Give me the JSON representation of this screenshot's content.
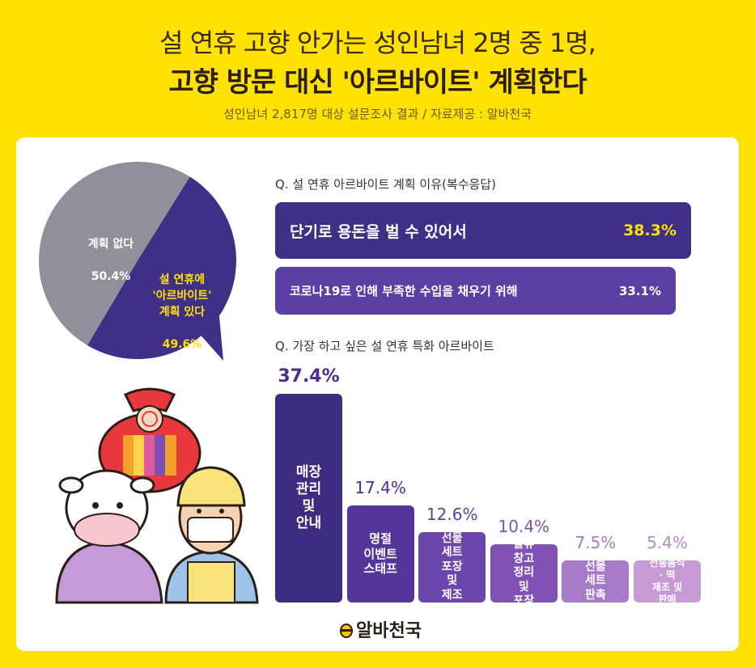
{
  "header": {
    "title_line1": "설 연휴 고향 안가는 성인남녀 2명 중 1명,",
    "title_line2": "고향 방문 대신 '아르바이트' 계획한다",
    "subtitle": "성인남녀 2,817명 대상 설문조사 결과 / 자료제공 : 알바천국"
  },
  "colors": {
    "background": "#FFE200",
    "purple_dark": "#3F2F86",
    "purple_mid": "#5B3FA2",
    "gray_slice": "#8F909A",
    "value_yellow": "#FFE200"
  },
  "pie": {
    "no_plan_label": "계획 없다",
    "no_plan_value": "50.4%",
    "plan_label": "설 연휴에\n'아르바이트'\n계획 있다",
    "plan_value": "49.6%"
  },
  "reasons": {
    "question": "Q. 설 연휴 아르바이트 계획 이유(복수응답)",
    "items": [
      {
        "label": "단기로 용돈을 벌 수 있어서",
        "value": "38.3%"
      },
      {
        "label": "코로나19로 인해 부족한 수입을 채우기 위해",
        "value": "33.1%"
      }
    ]
  },
  "jobs": {
    "question": "Q. 가장 하고 싶은 설 연휴 특화 아르바이트"
  },
  "chart_data": [
    {
      "type": "pie",
      "categories": [
        "설 연휴에 '아르바이트' 계획 있다",
        "계획 없다"
      ],
      "values": [
        49.6,
        50.4
      ]
    },
    {
      "type": "bar",
      "title": "Q. 설 연휴 아르바이트 계획 이유(복수응답)",
      "categories": [
        "단기로 용돈을 벌 수 있어서",
        "코로나19로 인해 부족한 수입을 채우기 위해"
      ],
      "values": [
        38.3,
        33.1
      ]
    },
    {
      "type": "bar",
      "title": "Q. 가장 하고 싶은 설 연휴 특화 아르바이트",
      "categories": [
        "매장\n관리\n및\n안내",
        "명절\n이벤트\n스태프",
        "선물\n세트\n포장\n및\n제조",
        "물류\n창고\n정리\n및\n포장",
        "선물\n세트\n판촉",
        "전통음식\n· 떡\n제조 및\n판매"
      ],
      "values": [
        37.4,
        17.4,
        12.6,
        10.4,
        7.5,
        5.4
      ],
      "value_labels": [
        "37.4%",
        "17.4%",
        "12.6%",
        "10.4%",
        "7.5%",
        "5.4%"
      ],
      "bar_colors": [
        "#3D2C80",
        "#55359A",
        "#6B46AC",
        "#8152B5",
        "#A57BC8",
        "#C79AD6"
      ],
      "label_colors": [
        "#4B2E93",
        "#4B2E93",
        "#5B3FA2",
        "#7A55AE",
        "#A57BC8",
        "#B98ACB"
      ]
    }
  ],
  "brand": {
    "name": "알바천국"
  }
}
